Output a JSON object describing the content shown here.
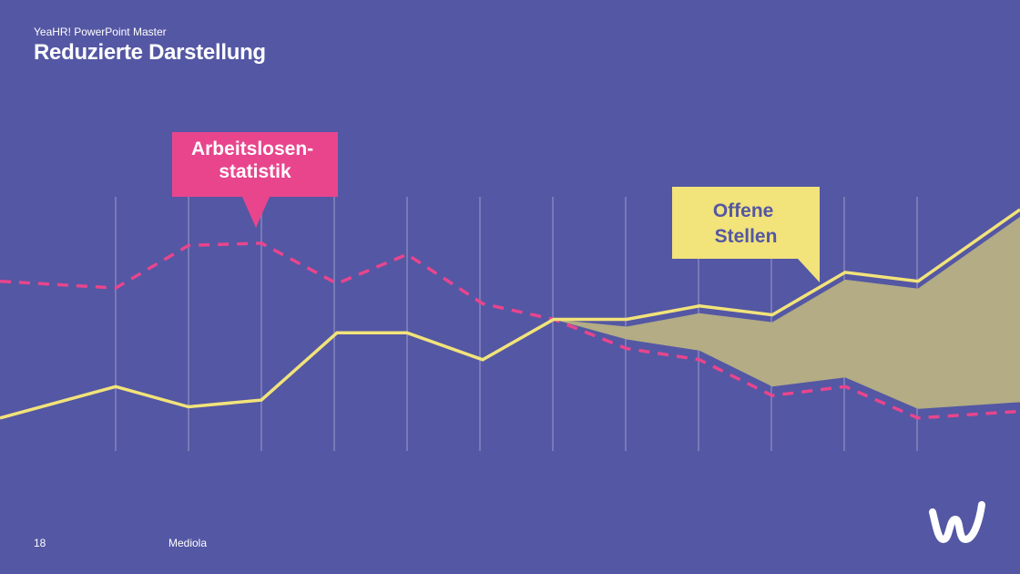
{
  "slide": {
    "kicker": "YeaHR! PowerPoint Master",
    "title": "Reduzierte Darstellung",
    "page_number": "18",
    "footer": "Mediola",
    "logo_icon": "w-wave-logo-icon"
  },
  "colors": {
    "background": "#5457a3",
    "unemployment": "#e8458d",
    "openings": "#f2e37a",
    "gap_fill": "#b3ac84",
    "gridline": "#8486c0"
  },
  "chart_data": {
    "type": "line",
    "title": "",
    "xlabel": "",
    "ylabel": "",
    "grid": "vertical",
    "x": [
      0,
      1,
      2,
      3,
      4,
      5,
      6,
      7,
      8,
      9,
      10,
      11,
      12,
      13,
      14
    ],
    "ylim": [
      0,
      100
    ],
    "series": [
      {
        "name": "Arbeitslosen- statistik",
        "style": "dashed",
        "color": "#e8458d",
        "values": [
          68,
          65,
          84,
          85,
          67,
          80,
          58,
          51,
          38,
          33,
          17,
          21,
          7,
          10,
          null
        ]
      },
      {
        "name": "Offene Stellen",
        "style": "solid",
        "color": "#f2e37a",
        "values": [
          7,
          21,
          12,
          15,
          45,
          45,
          33,
          51,
          51,
          57,
          53,
          72,
          68,
          100,
          null
        ]
      }
    ],
    "annotations": [
      {
        "text_lines": [
          "Arbeitslosen-",
          "statistik"
        ],
        "series": "unemployment",
        "color": "#e8458d"
      },
      {
        "text_lines": [
          "Offene",
          "Stellen"
        ],
        "series": "openings",
        "color": "#f2e37a"
      }
    ]
  }
}
